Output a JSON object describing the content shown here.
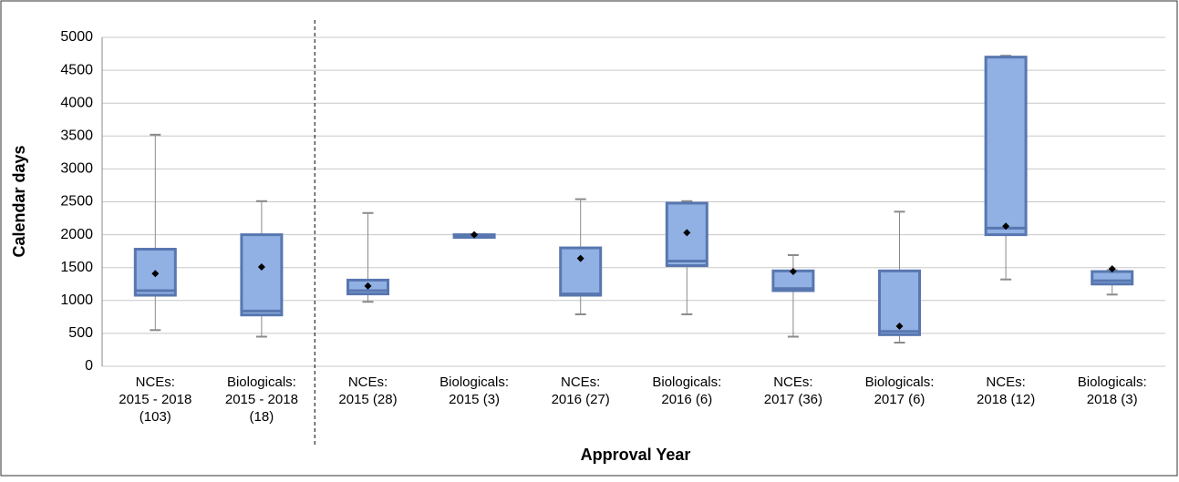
{
  "chart_data": {
    "type": "box",
    "x_label": "Approval Year",
    "y_label": "Calendar days",
    "categories": [
      [
        "NCEs:",
        "2015 - 2018",
        "(103)"
      ],
      [
        "Biologicals:",
        "2015 - 2018",
        "(18)"
      ],
      [
        "NCEs:",
        "2015 (28)"
      ],
      [
        "Biologicals:",
        "2015 (3)"
      ],
      [
        "NCEs:",
        "2016 (27)"
      ],
      [
        "Biologicals:",
        "2016 (6)"
      ],
      [
        "NCEs:",
        "2017 (36)"
      ],
      [
        "Biologicals:",
        "2017 (6)"
      ],
      [
        "NCEs:",
        "2018 (12)"
      ],
      [
        "Biologicals:",
        "2018 (3)"
      ]
    ],
    "min": [
      550,
      450,
      980,
      1960,
      790,
      790,
      450,
      360,
      1320,
      1090
    ],
    "q1": [
      1080,
      780,
      1100,
      1960,
      1080,
      1530,
      1150,
      480,
      2000,
      1250
    ],
    "median": [
      1150,
      840,
      1150,
      1980,
      1100,
      1600,
      1180,
      530,
      2100,
      1300
    ],
    "q3": [
      1780,
      2000,
      1310,
      2000,
      1800,
      2480,
      1450,
      1450,
      4700,
      1440
    ],
    "max": [
      3520,
      2510,
      2330,
      2010,
      2540,
      2510,
      1690,
      2350,
      4720,
      1460
    ],
    "mean": [
      1410,
      1510,
      1220,
      2000,
      1640,
      2030,
      1440,
      610,
      2130,
      1480
    ],
    "color": "#91b1e4",
    "edge_color": "#5877b0",
    "whisker_color": "#8a8a8a",
    "mean_color": "#000000",
    "ylim": [
      0,
      5000
    ],
    "yticks": [
      0,
      500,
      1000,
      1500,
      2000,
      2500,
      3000,
      3500,
      4000,
      4500,
      5000
    ],
    "grid": true
  }
}
